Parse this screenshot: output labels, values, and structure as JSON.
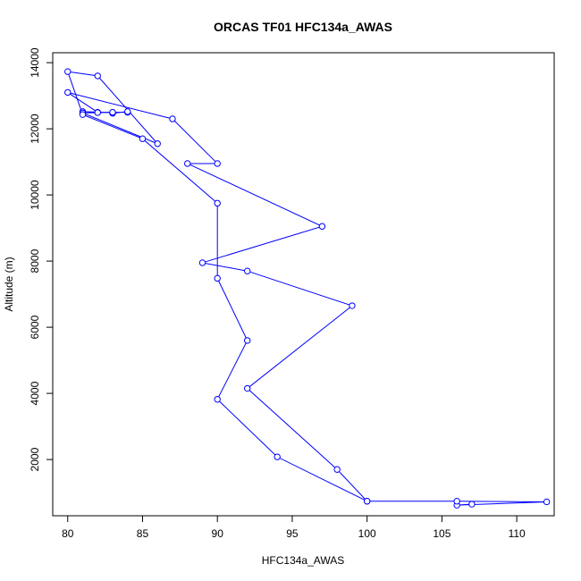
{
  "chart_data": {
    "type": "line",
    "title": "ORCAS TF01 HFC134a_AWAS",
    "xlabel": "HFC134a_AWAS",
    "ylabel": "Altitude (m)",
    "xlim": [
      79,
      112.5
    ],
    "ylim": [
      300,
      14300
    ],
    "xticks": [
      80,
      85,
      90,
      95,
      100,
      105,
      110
    ],
    "yticks": [
      2000,
      4000,
      6000,
      8000,
      10000,
      12000,
      14000
    ],
    "grid": false,
    "legend": "none",
    "color": "#0000ff",
    "series": [
      {
        "points": [
          [
            107,
            650
          ],
          [
            106,
            620
          ],
          [
            112,
            720
          ],
          [
            106,
            740
          ],
          [
            100,
            740
          ],
          [
            98,
            1700
          ],
          [
            92,
            4150
          ],
          [
            99,
            6650
          ],
          [
            92,
            7700
          ],
          [
            89,
            7950
          ],
          [
            97,
            9050
          ],
          [
            88,
            10950
          ],
          [
            90,
            10950
          ],
          [
            87,
            12300
          ],
          [
            80,
            13100
          ],
          [
            82,
            12500
          ],
          [
            84,
            12500
          ],
          [
            84,
            12520
          ],
          [
            83,
            12470
          ],
          [
            83,
            12490
          ],
          [
            81,
            12520
          ],
          [
            82,
            12490
          ],
          [
            83,
            12500
          ],
          [
            81,
            12480
          ],
          [
            86,
            11550
          ],
          [
            82,
            13600
          ],
          [
            80,
            13730
          ],
          [
            81,
            12430
          ],
          [
            85,
            11700
          ],
          [
            90,
            9750
          ],
          [
            90,
            7480
          ],
          [
            92,
            5600
          ],
          [
            90,
            3820
          ],
          [
            94,
            2080
          ],
          [
            100,
            740
          ]
        ]
      }
    ]
  }
}
